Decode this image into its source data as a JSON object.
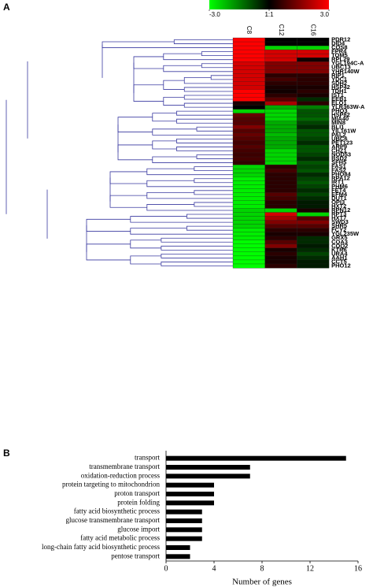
{
  "chart_data": [
    {
      "type": "heatmap",
      "panel_label": "A",
      "categories": [
        "PDR12",
        "DID4",
        "COS8",
        "FPR4",
        "TOM5",
        "RPL29",
        "YGL194C-A",
        "UBC13",
        "YHR140W",
        "RIP1",
        "YDC1",
        "SDH2",
        "HSP42",
        "TDH1",
        "IST1",
        "EEB1",
        "ELO1",
        "YLR363W-A",
        "PHO3",
        "HSP82",
        "MIA40",
        "MIN8",
        "BLI1",
        "YIL161W",
        "PAL2",
        "UBC6",
        "PET123",
        "ARP9",
        "CHZ1",
        "NOD53",
        "BSD2",
        "SFH5",
        "FAS1",
        "FAS2",
        "PHO84",
        "RPA12",
        "IRT1",
        "PHM6",
        "FET4",
        "EFM4",
        "DUT1",
        "OPI3",
        "HXT2",
        "RPN12",
        "RPT3",
        "HXT7",
        "SWD3",
        "SHR5",
        "FCY2",
        "YGL235W",
        "GRX5",
        "COA3",
        "COQ2",
        "KTR6",
        "URA4",
        "AAH1",
        "CCT5",
        "PHO12"
      ],
      "series": [
        {
          "name": "C8",
          "values": [
            3,
            3,
            3,
            3,
            3,
            3,
            2.5,
            2.5,
            2.5,
            2.5,
            2.5,
            2.5,
            2.5,
            3,
            3,
            3,
            0.3,
            0,
            -2.5,
            1.2,
            1,
            1,
            1.5,
            1,
            1.2,
            1,
            0.8,
            1,
            0.8,
            0.7,
            0.8,
            0.6,
            -2.5,
            -2.5,
            -2.5,
            -2.8,
            -2.8,
            -2.8,
            -2.8,
            -2.8,
            -2.8,
            -2.8,
            -2.8,
            -2.5,
            -2.5,
            -2.5,
            -2.5,
            -2.5,
            -2.8,
            -2.8,
            -2.8,
            -3,
            -3,
            -3,
            -3,
            -3,
            -3,
            -3
          ]
        },
        {
          "name": "C12",
          "values": [
            0,
            0,
            -2.5,
            2.5,
            2.5,
            2.5,
            1.5,
            1.5,
            1.5,
            0.5,
            0.8,
            0.5,
            0.3,
            0.2,
            0.5,
            1,
            2,
            -2,
            -2.5,
            -2.5,
            -2.5,
            -2,
            -2,
            -2,
            -2.2,
            -2,
            -2,
            -2,
            -2.5,
            -2.5,
            -2.5,
            -2.5,
            0.5,
            0.8,
            0.5,
            0.5,
            0.5,
            0.5,
            0.5,
            1,
            0.8,
            0.5,
            0.5,
            -2.5,
            2.5,
            2,
            1.5,
            1,
            0.5,
            0.3,
            0.5,
            1,
            1.5,
            0.3,
            0.5,
            0.3,
            0.3,
            0.5
          ]
        },
        {
          "name": "C16",
          "values": [
            0,
            0,
            -2.5,
            2.5,
            2.5,
            0.2,
            1.5,
            1.5,
            1.5,
            0.5,
            0.5,
            0.5,
            0.3,
            0.5,
            0.3,
            -0.5,
            0.5,
            -1.5,
            -1,
            -1,
            -1.2,
            -0.8,
            -0.5,
            -1,
            -1,
            -0.8,
            -0.5,
            -1,
            -1,
            -0.8,
            -0.5,
            -1,
            -0.8,
            -1,
            -0.5,
            -0.8,
            -1,
            -0.8,
            -0.5,
            -0.8,
            -0.5,
            -0.3,
            -0.3,
            0.3,
            -2.5,
            1,
            1.5,
            1,
            0.5,
            0.3,
            -0.5,
            -0.5,
            -0.3,
            -0.5,
            -0.8,
            -0.5,
            -0.3,
            -0.3
          ]
        }
      ],
      "zlim": [
        -3,
        3
      ],
      "colors": [
        "#00ff00",
        "#000000",
        "#ff0000"
      ],
      "zticks": [
        {
          "value": -3,
          "label": "-3.0"
        },
        {
          "value": 0,
          "label": "1:1"
        },
        {
          "value": 3,
          "label": "3.0"
        }
      ]
    },
    {
      "type": "hbar",
      "panel_label": "B",
      "categories": [
        "transport",
        "transmembrane transport",
        "oxidation-reduction process",
        "protein targeting to mitochondrion",
        "proton transport",
        "protein folding",
        "fatty acid biosynthetic process",
        "glucose transmembrane transport",
        "glucose import",
        "fatty acid metabolic process",
        "long-chain fatty acid biosynthetic process",
        "pentose transport"
      ],
      "values": [
        15,
        7,
        7,
        4,
        4,
        4,
        3,
        3,
        3,
        3,
        2,
        2
      ],
      "color": "#000000",
      "xlim": [
        0,
        16
      ],
      "xticks": [
        0,
        4,
        8,
        12,
        16
      ],
      "x_label": "Number of genes"
    }
  ]
}
